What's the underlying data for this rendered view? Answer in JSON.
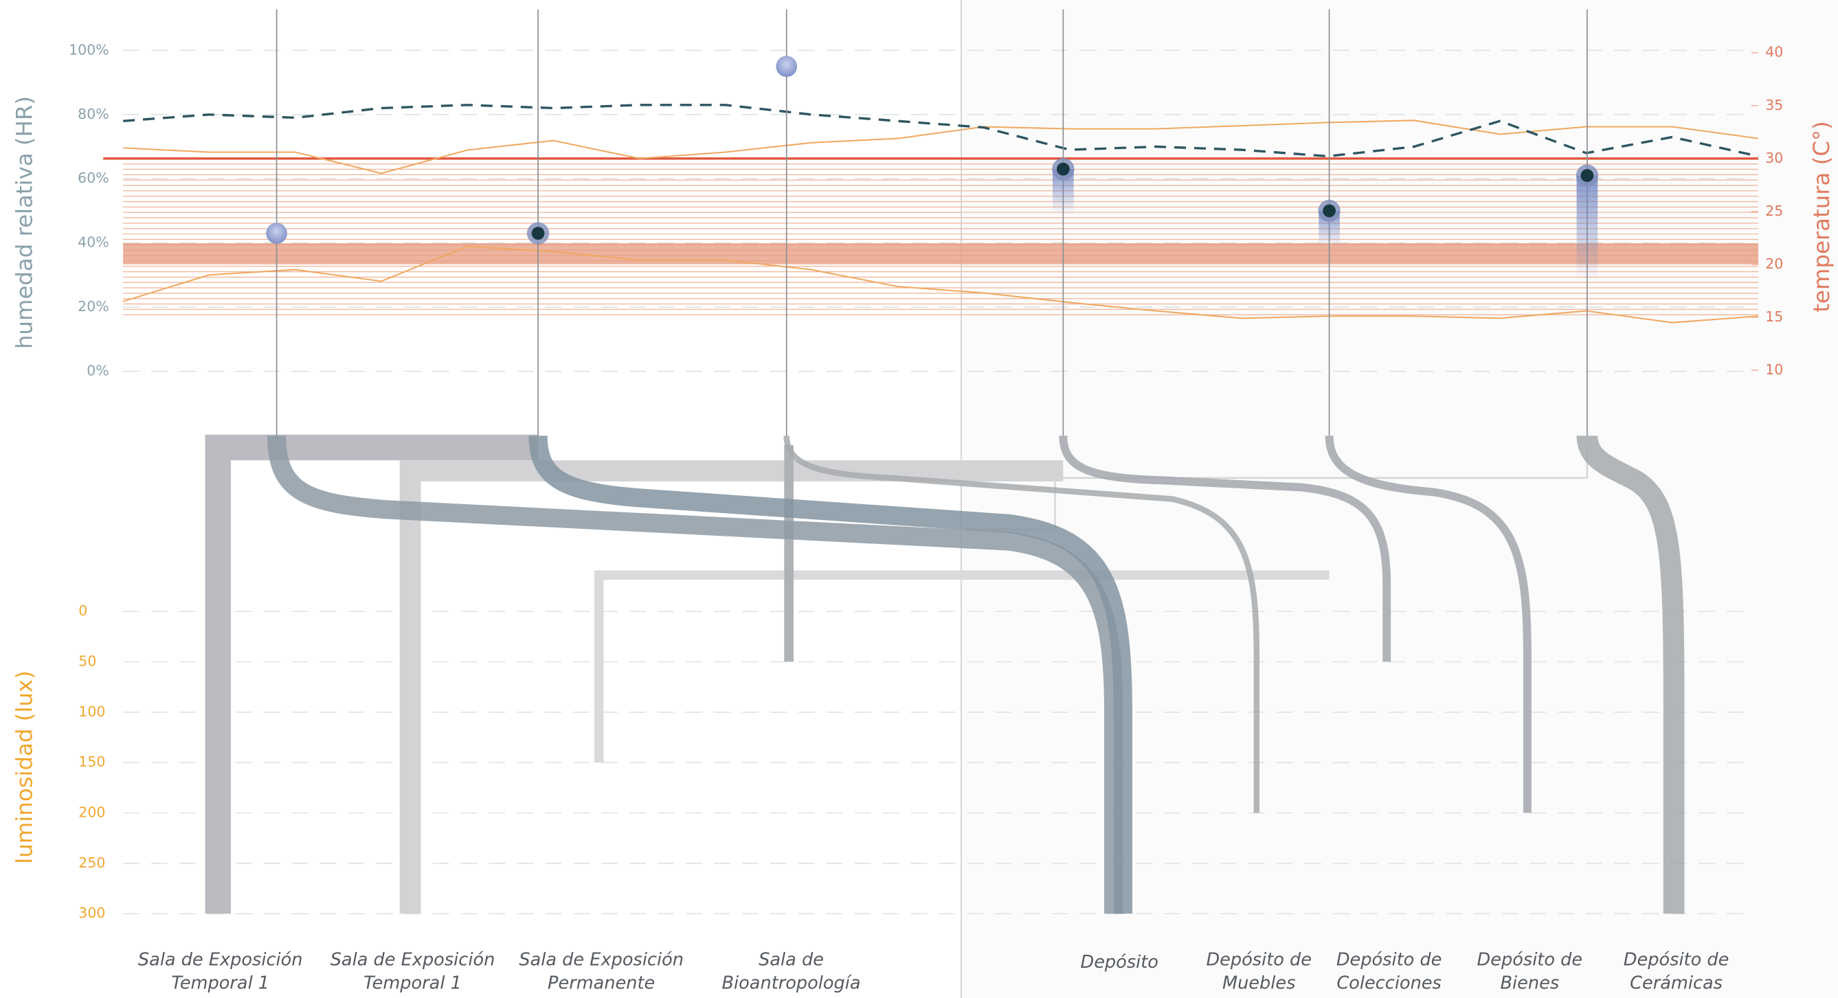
{
  "chart_data": {
    "type": "infographic",
    "humidity_axis": {
      "label": "humedad relativa (HR)",
      "color": "#8aa1ab",
      "ylim": [
        0,
        100
      ],
      "yticks": [
        {
          "value": 100,
          "label": "100%"
        },
        {
          "value": 80,
          "label": "80%"
        },
        {
          "value": 60,
          "label": "60%"
        },
        {
          "value": 40,
          "label": "40%"
        },
        {
          "value": 20,
          "label": "20%"
        },
        {
          "value": 0,
          "label": "0%"
        }
      ]
    },
    "temperature_axis": {
      "label": "temperatura (C°)",
      "color": "#e07a5f",
      "ylim": [
        10,
        40
      ],
      "yticks": [
        40,
        35,
        30,
        25,
        20,
        15,
        10
      ],
      "reference_line": 30,
      "band": [
        20,
        22
      ],
      "hatch": [
        15,
        30
      ]
    },
    "lux_axis": {
      "label": "luminosidad (lux)",
      "color": "#f0a830",
      "ylim": [
        0,
        300
      ],
      "yticks": [
        0,
        50,
        100,
        150,
        200,
        250,
        300
      ]
    },
    "humidity_series": {
      "color": "#2e5660",
      "values": [
        78,
        80,
        79,
        82,
        83,
        82,
        83,
        83,
        80,
        78,
        76,
        69,
        70,
        69,
        67,
        70,
        78,
        68,
        73,
        67
      ]
    },
    "temperature_series": [
      {
        "color": "#f0a860",
        "values": [
          31,
          30.6,
          30.6,
          28.6,
          30.8,
          31.7,
          30,
          30.6,
          31.5,
          31.9,
          33,
          32.8,
          32.8,
          33.1,
          33.4,
          33.6,
          32.3,
          33,
          33,
          31.9
        ]
      },
      {
        "color": "#f0a860",
        "values": [
          16.5,
          19,
          19.5,
          18.4,
          21.7,
          21.2,
          20.4,
          20.4,
          19.5,
          17.9,
          17.3,
          16.4,
          15.6,
          14.9,
          15.1,
          15.1,
          14.9,
          15.6,
          14.5,
          15.1
        ]
      }
    ],
    "sensors": [
      43,
      43,
      95,
      63,
      50,
      61
    ],
    "rooms": [
      {
        "name": [
          "Sala de Exposición",
          "Temporal 1"
        ],
        "lux": 300
      },
      {
        "name": [
          "Sala de Exposición",
          "Temporal 1"
        ],
        "lux": 300
      },
      {
        "name": [
          "Sala de Exposición",
          "Permanente"
        ],
        "lux": 150
      },
      {
        "name": [
          "Sala de",
          "Bioantropología"
        ],
        "lux": 50
      },
      {
        "name": [
          "Depósito"
        ],
        "lux": 300
      },
      {
        "name": [
          "Depósito de",
          "Muebles"
        ],
        "lux": 200
      },
      {
        "name": [
          "Depósito de",
          "Colecciones"
        ],
        "lux": 50
      },
      {
        "name": [
          "Depósito de",
          "Bienes"
        ],
        "lux": 200
      },
      {
        "name": [
          "Depósito de",
          "Cerámicas"
        ],
        "lux": 300
      }
    ]
  }
}
